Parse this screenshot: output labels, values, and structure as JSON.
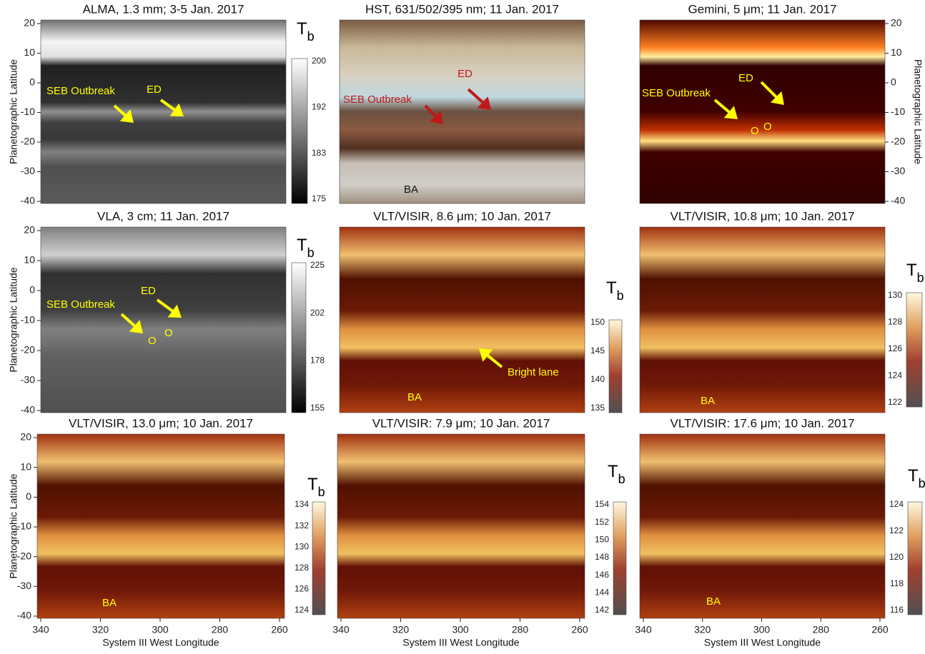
{
  "figure": {
    "y_axis_label": "Planetographic Latitude",
    "x_axis_label": "System III West Longitude",
    "yticks": [
      20,
      10,
      0,
      -10,
      -20,
      -30,
      -40
    ],
    "xticks": [
      340,
      320,
      300,
      280,
      260
    ],
    "colorbar_symbol": "T",
    "colorbar_subscript": "b",
    "panels": [
      {
        "title": "ALMA, 1.3 mm; 3-5 Jan. 2017",
        "annotations": [
          "SEB Outbreak",
          "ED"
        ],
        "colorbar_ticks": [
          200,
          192,
          183,
          175
        ]
      },
      {
        "title": "HST, 631/502/395 nm; 11 Jan. 2017",
        "annotations": [
          "ED",
          "SEB Outbreak",
          "BA"
        ]
      },
      {
        "title": "Gemini, 5 μm; 11 Jan. 2017",
        "annotations": [
          "SEB Outbreak",
          "ED",
          "O",
          "O"
        ]
      },
      {
        "title": "VLA, 3 cm; 11 Jan. 2017",
        "annotations": [
          "ED",
          "SEB Outbreak",
          "O",
          "O"
        ],
        "colorbar_ticks": [
          225,
          202,
          178,
          155
        ]
      },
      {
        "title": "VLT/VISIR, 8.6 μm; 10 Jan. 2017",
        "annotations": [
          "Bright lane",
          "BA"
        ],
        "colorbar_ticks": [
          150,
          145,
          140,
          135
        ]
      },
      {
        "title": "VLT/VISIR, 10.8 μm; 10 Jan. 2017",
        "annotations": [
          "BA"
        ],
        "colorbar_ticks": [
          130,
          128,
          126,
          124,
          122
        ]
      },
      {
        "title": "VLT/VISIR, 13.0 μm; 10 Jan. 2017",
        "annotations": [
          "BA"
        ],
        "colorbar_ticks": [
          134,
          132,
          130,
          128,
          126,
          124
        ]
      },
      {
        "title": "VLT/VISIR: 7.9 μm; 10 Jan. 2017",
        "annotations": [],
        "colorbar_ticks": [
          154,
          152,
          150,
          148,
          146,
          144,
          142
        ]
      },
      {
        "title": "VLT/VISIR: 17.6 μm; 10 Jan. 2017",
        "annotations": [
          "BA"
        ],
        "colorbar_ticks": [
          124,
          122,
          120,
          118,
          116
        ]
      }
    ]
  }
}
